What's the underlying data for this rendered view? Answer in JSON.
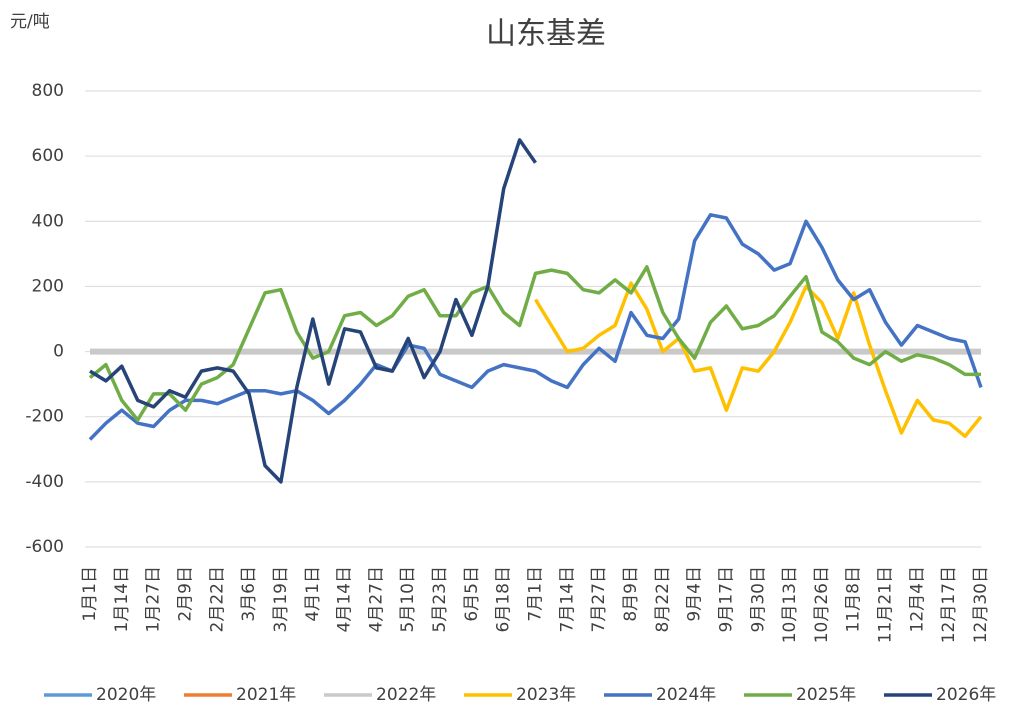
{
  "chart_data": {
    "type": "line",
    "title": "山东基差",
    "y_label": "元/吨",
    "categories": [
      "1月1日",
      null,
      "1月14日",
      null,
      "1月27日",
      null,
      "2月9日",
      null,
      "2月22日",
      null,
      "3月6日",
      null,
      "3月19日",
      null,
      "4月1日",
      null,
      "4月14日",
      null,
      "4月27日",
      null,
      "5月10日",
      null,
      "5月23日",
      null,
      "6月5日",
      null,
      "6月18日",
      null,
      "7月1日",
      null,
      "7月14日",
      null,
      "7月27日",
      null,
      "8月9日",
      null,
      "8月22日",
      null,
      "9月4日",
      null,
      "9月17日",
      null,
      "9月30日",
      null,
      "10月13日",
      null,
      "10月26日",
      null,
      "11月8日",
      null,
      "11月21日",
      null,
      "12月4日",
      null,
      "12月17日",
      null,
      "12月30日"
    ],
    "ylim": [
      -600,
      800
    ],
    "yticks": [
      -600,
      -400,
      -200,
      0,
      200,
      400,
      600,
      800
    ],
    "legend": "bottom",
    "series": [
      {
        "name": "2020年",
        "color": "#5b9bd5",
        "values": [
          0,
          0,
          0,
          0,
          0,
          0,
          0,
          0,
          0,
          0,
          0,
          0,
          0,
          0,
          0,
          0,
          0,
          0,
          0,
          0,
          0,
          0,
          0,
          0,
          0,
          0,
          0,
          0,
          0,
          0,
          0,
          0,
          0,
          0,
          0,
          0,
          0,
          0,
          0,
          0,
          0,
          0,
          0,
          0,
          0,
          0,
          0,
          0,
          0,
          0,
          0,
          0,
          0,
          0,
          0,
          0,
          0
        ]
      },
      {
        "name": "2021年",
        "color": "#ed7d31",
        "values": [
          0,
          0,
          0,
          0,
          0,
          0,
          0,
          0,
          0,
          0,
          0,
          0,
          0,
          0,
          0,
          0,
          0,
          0,
          0,
          0,
          0,
          0,
          0,
          0,
          0,
          0,
          0,
          0,
          0,
          0,
          0,
          0,
          0,
          0,
          0,
          0,
          0,
          0,
          0,
          0,
          0,
          0,
          0,
          0,
          0,
          0,
          0,
          0,
          0,
          0,
          0,
          0,
          0,
          0,
          0,
          0,
          0
        ]
      },
      {
        "name": "2022年",
        "color": "#c9c9c9",
        "values": [
          0,
          0,
          0,
          0,
          0,
          0,
          0,
          0,
          0,
          0,
          0,
          0,
          0,
          0,
          0,
          0,
          0,
          0,
          0,
          0,
          0,
          0,
          0,
          0,
          0,
          0,
          0,
          0,
          0,
          0,
          0,
          0,
          0,
          0,
          0,
          0,
          0,
          0,
          0,
          0,
          0,
          0,
          0,
          0,
          0,
          0,
          0,
          0,
          0,
          0,
          0,
          0,
          0,
          0,
          0,
          0,
          0
        ]
      },
      {
        "name": "2023年",
        "color": "#ffc000",
        "values": [
          null,
          null,
          null,
          null,
          null,
          null,
          null,
          null,
          null,
          null,
          null,
          null,
          null,
          null,
          null,
          null,
          null,
          null,
          null,
          null,
          null,
          null,
          null,
          null,
          null,
          null,
          null,
          null,
          160,
          80,
          0,
          10,
          50,
          80,
          210,
          130,
          0,
          40,
          -60,
          -50,
          -180,
          -50,
          -60,
          0,
          90,
          200,
          150,
          40,
          180,
          20,
          -120,
          -250,
          -150,
          -210,
          -220,
          -260,
          -200
        ]
      },
      {
        "name": "2024年",
        "color": "#4472c4",
        "values": [
          -270,
          -220,
          -180,
          -220,
          -230,
          -180,
          -150,
          -150,
          -160,
          -140,
          -120,
          -120,
          -130,
          -120,
          -150,
          -190,
          -150,
          -100,
          -40,
          -60,
          20,
          10,
          -70,
          -90,
          -110,
          -60,
          -40,
          -50,
          -60,
          -90,
          -110,
          -40,
          10,
          -30,
          120,
          50,
          40,
          100,
          340,
          420,
          410,
          330,
          300,
          250,
          270,
          400,
          320,
          220,
          160,
          190,
          90,
          20,
          80,
          60,
          40,
          30,
          -110
        ]
      },
      {
        "name": "2025年",
        "color": "#70ad47",
        "values": [
          -80,
          -40,
          -150,
          -210,
          -130,
          -130,
          -180,
          -100,
          -80,
          -40,
          70,
          180,
          190,
          60,
          -20,
          0,
          110,
          120,
          80,
          110,
          170,
          190,
          110,
          110,
          180,
          200,
          120,
          80,
          240,
          250,
          240,
          190,
          180,
          220,
          180,
          260,
          120,
          40,
          -20,
          90,
          140,
          70,
          80,
          110,
          170,
          230,
          60,
          30,
          -20,
          -40,
          0,
          -30,
          -10,
          -20,
          -40,
          -70,
          -70
        ]
      },
      {
        "name": "2026年",
        "color": "#264478",
        "values": [
          -60,
          -90,
          -45,
          -150,
          -170,
          -120,
          -140,
          -60,
          -50,
          -60,
          -130,
          -350,
          -400,
          -110,
          100,
          -100,
          70,
          60,
          -50,
          -60,
          40,
          -80,
          0,
          160,
          50,
          200,
          500,
          650,
          580,
          null,
          null,
          null,
          null,
          null,
          null,
          null,
          null,
          null,
          null,
          null,
          null,
          null,
          null,
          null,
          null,
          null,
          null,
          null,
          null,
          null,
          null,
          null,
          null,
          null,
          null,
          null,
          null
        ]
      }
    ]
  }
}
